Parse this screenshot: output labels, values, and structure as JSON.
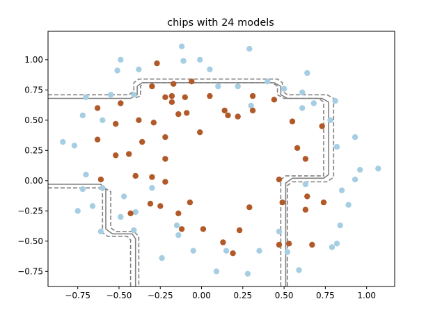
{
  "chart_data": {
    "type": "scatter",
    "title": "chips with 24 models",
    "xlabel": "",
    "ylabel": "",
    "xlim": [
      -0.93,
      1.17
    ],
    "ylim": [
      -0.875,
      1.235
    ],
    "x_ticks": [
      -0.75,
      -0.5,
      -0.25,
      0.0,
      0.25,
      0.5,
      0.75,
      1.0
    ],
    "x_tick_labels": [
      "−0.75",
      "−0.50",
      "−0.25",
      "0.00",
      "0.25",
      "0.50",
      "0.75",
      "1.00"
    ],
    "y_ticks": [
      -0.75,
      -0.5,
      -0.25,
      0.0,
      0.25,
      0.5,
      0.75,
      1.0
    ],
    "y_tick_labels": [
      "−0.75",
      "−0.50",
      "−0.25",
      "0.00",
      "0.25",
      "0.50",
      "0.75",
      "1.00"
    ],
    "grid": false,
    "legend": "none",
    "colors": {
      "class_0": "#a6cee3",
      "class_1": "#b15928",
      "boundary": "#808080",
      "axes": "#000000"
    },
    "series": [
      {
        "class": 0,
        "points": [
          [
            -0.49,
            1.0
          ],
          [
            -0.51,
            0.91
          ],
          [
            -0.38,
            0.92
          ],
          [
            -0.12,
            1.11
          ],
          [
            -0.11,
            0.99
          ],
          [
            -0.01,
            1.0
          ],
          [
            0.05,
            0.92
          ],
          [
            0.29,
            1.09
          ],
          [
            -0.55,
            0.71
          ],
          [
            -0.41,
            0.71
          ],
          [
            0.1,
            0.78
          ],
          [
            0.22,
            0.78
          ],
          [
            0.4,
            0.82
          ],
          [
            0.5,
            0.76
          ],
          [
            0.64,
            0.89
          ],
          [
            0.61,
            0.73
          ],
          [
            0.68,
            0.64
          ],
          [
            -0.7,
            0.69
          ],
          [
            -0.72,
            0.54
          ],
          [
            -0.6,
            0.5
          ],
          [
            0.3,
            0.62
          ],
          [
            0.61,
            0.6
          ],
          [
            0.78,
            0.5
          ],
          [
            0.81,
            0.66
          ],
          [
            -0.84,
            0.32
          ],
          [
            -0.77,
            0.29
          ],
          [
            0.82,
            0.28
          ],
          [
            0.93,
            0.36
          ],
          [
            -0.7,
            0.05
          ],
          [
            -0.72,
            -0.07
          ],
          [
            0.63,
            -0.03
          ],
          [
            0.85,
            -0.08
          ],
          [
            0.93,
            0.01
          ],
          [
            0.96,
            0.09
          ],
          [
            1.07,
            0.1
          ],
          [
            -0.6,
            -0.06
          ],
          [
            -0.47,
            -0.13
          ],
          [
            -0.3,
            -0.06
          ],
          [
            -0.66,
            -0.21
          ],
          [
            -0.75,
            -0.25
          ],
          [
            -0.49,
            -0.3
          ],
          [
            -0.4,
            -0.26
          ],
          [
            -0.61,
            -0.42
          ],
          [
            -0.41,
            -0.41
          ],
          [
            -0.15,
            -0.37
          ],
          [
            -0.14,
            -0.45
          ],
          [
            0.47,
            -0.42
          ],
          [
            0.89,
            -0.2
          ],
          [
            0.84,
            -0.37
          ],
          [
            -0.24,
            -0.64
          ],
          [
            -0.05,
            -0.58
          ],
          [
            0.15,
            -0.58
          ],
          [
            0.35,
            -0.58
          ],
          [
            0.52,
            -0.59
          ],
          [
            0.79,
            -0.55
          ],
          [
            0.82,
            -0.52
          ],
          [
            0.09,
            -0.75
          ],
          [
            0.28,
            -0.77
          ],
          [
            0.59,
            -0.74
          ]
        ]
      },
      {
        "class": 1,
        "points": [
          [
            -0.27,
            0.97
          ],
          [
            -0.3,
            0.78
          ],
          [
            -0.17,
            0.8
          ],
          [
            -0.06,
            0.82
          ],
          [
            0.05,
            0.7
          ],
          [
            -0.22,
            0.69
          ],
          [
            -0.18,
            0.7
          ],
          [
            -0.1,
            0.69
          ],
          [
            -0.63,
            0.6
          ],
          [
            -0.49,
            0.64
          ],
          [
            -0.18,
            0.65
          ],
          [
            0.31,
            0.7
          ],
          [
            0.44,
            0.67
          ],
          [
            -0.52,
            0.47
          ],
          [
            -0.38,
            0.5
          ],
          [
            -0.29,
            0.48
          ],
          [
            -0.14,
            0.55
          ],
          [
            -0.09,
            0.56
          ],
          [
            0.14,
            0.58
          ],
          [
            0.16,
            0.54
          ],
          [
            0.22,
            0.53
          ],
          [
            0.31,
            0.58
          ],
          [
            0.55,
            0.49
          ],
          [
            0.73,
            0.45
          ],
          [
            -0.63,
            0.34
          ],
          [
            -0.52,
            0.21
          ],
          [
            -0.44,
            0.22
          ],
          [
            -0.36,
            0.32
          ],
          [
            -0.22,
            0.36
          ],
          [
            -0.01,
            0.4
          ],
          [
            0.58,
            0.27
          ],
          [
            -0.22,
            0.18
          ],
          [
            0.63,
            0.18
          ],
          [
            -0.61,
            0.01
          ],
          [
            -0.4,
            0.04
          ],
          [
            -0.3,
            0.03
          ],
          [
            -0.22,
            -0.01
          ],
          [
            0.47,
            0.01
          ],
          [
            -0.43,
            -0.27
          ],
          [
            -0.31,
            -0.19
          ],
          [
            -0.25,
            -0.21
          ],
          [
            -0.07,
            -0.18
          ],
          [
            -0.14,
            -0.27
          ],
          [
            0.49,
            -0.18
          ],
          [
            0.64,
            -0.13
          ],
          [
            0.63,
            -0.24
          ],
          [
            0.74,
            -0.18
          ],
          [
            0.29,
            -0.22
          ],
          [
            -0.12,
            -0.4
          ],
          [
            0.01,
            -0.4
          ],
          [
            0.23,
            -0.41
          ],
          [
            0.13,
            -0.51
          ],
          [
            0.19,
            -0.6
          ],
          [
            0.47,
            -0.53
          ],
          [
            0.53,
            -0.52
          ],
          [
            0.67,
            -0.53
          ]
        ]
      }
    ],
    "decision_boundary": {
      "solid": [
        [
          [
            -0.93,
            0.68
          ],
          [
            -0.43,
            0.68
          ],
          [
            -0.39,
            0.71
          ],
          [
            -0.39,
            0.78
          ],
          [
            -0.36,
            0.81
          ],
          [
            0.44,
            0.81
          ],
          [
            0.48,
            0.78
          ],
          [
            0.48,
            0.71
          ],
          [
            0.52,
            0.68
          ],
          [
            0.73,
            0.68
          ],
          [
            0.77,
            0.65
          ],
          [
            0.77,
            0.05
          ],
          [
            0.74,
            0.02
          ],
          [
            0.55,
            0.02
          ],
          [
            0.51,
            -0.02
          ],
          [
            0.51,
            -0.875
          ]
        ],
        [
          [
            -0.93,
            -0.03
          ],
          [
            -0.61,
            -0.03
          ],
          [
            -0.58,
            -0.07
          ],
          [
            -0.58,
            -0.4
          ],
          [
            -0.54,
            -0.44
          ],
          [
            -0.42,
            -0.44
          ],
          [
            -0.4,
            -0.48
          ],
          [
            -0.4,
            -0.875
          ]
        ]
      ],
      "dashed": [
        [
          [
            -0.93,
            0.71
          ],
          [
            -0.44,
            0.71
          ],
          [
            -0.41,
            0.74
          ],
          [
            -0.41,
            0.81
          ],
          [
            -0.38,
            0.84
          ],
          [
            0.46,
            0.84
          ],
          [
            0.49,
            0.81
          ],
          [
            0.49,
            0.74
          ],
          [
            0.52,
            0.71
          ],
          [
            0.76,
            0.71
          ],
          [
            0.8,
            0.68
          ],
          [
            0.8,
            0.03
          ],
          [
            0.76,
            -0.01
          ],
          [
            0.55,
            -0.01
          ],
          [
            0.52,
            -0.04
          ],
          [
            0.52,
            -0.875
          ]
        ],
        [
          [
            -0.93,
            -0.06
          ],
          [
            -0.59,
            -0.06
          ],
          [
            -0.55,
            -0.09
          ],
          [
            -0.55,
            -0.39
          ],
          [
            -0.52,
            -0.42
          ],
          [
            -0.41,
            -0.42
          ],
          [
            -0.38,
            -0.46
          ],
          [
            -0.38,
            -0.875
          ]
        ],
        [
          [
            0.48,
            -0.875
          ],
          [
            0.48,
            0.01
          ],
          [
            0.51,
            0.04
          ],
          [
            0.74,
            0.04
          ],
          [
            0.74,
            0.65
          ],
          [
            0.71,
            0.68
          ],
          [
            0.5,
            0.68
          ],
          [
            0.46,
            0.71
          ],
          [
            0.46,
            0.78
          ],
          [
            0.43,
            0.81
          ],
          [
            -0.35,
            0.81
          ],
          [
            -0.37,
            0.78
          ],
          [
            -0.37,
            0.7
          ],
          [
            -0.41,
            0.68
          ]
        ],
        [
          [
            -0.43,
            -0.875
          ],
          [
            -0.43,
            -0.49
          ],
          [
            -0.45,
            -0.46
          ],
          [
            -0.57,
            -0.46
          ],
          [
            -0.6,
            -0.43
          ],
          [
            -0.6,
            -0.08
          ],
          [
            -0.63,
            -0.06
          ]
        ]
      ]
    }
  }
}
